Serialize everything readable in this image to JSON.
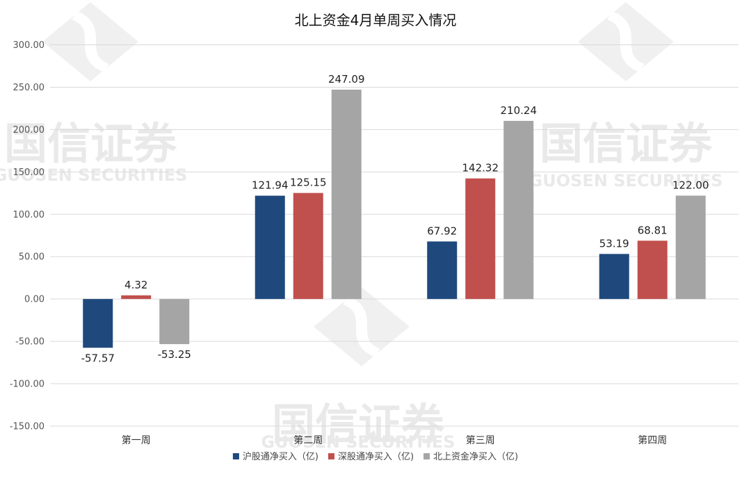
{
  "chart_data": {
    "type": "bar",
    "title": "北上资金4月单周买入情况",
    "xlabel": "",
    "ylabel": "",
    "categories": [
      "第一周",
      "第二周",
      "第三周",
      "第四周"
    ],
    "series": [
      {
        "name": "沪股通净买入（亿)",
        "color": "#1f497d",
        "values": [
          -57.57,
          121.94,
          67.92,
          53.19
        ]
      },
      {
        "name": "深股通净买入（亿)",
        "color": "#c0504d",
        "values": [
          4.32,
          125.15,
          142.32,
          68.81
        ]
      },
      {
        "name": "北上资金净买入（亿)",
        "color": "#a5a5a5",
        "values": [
          -53.25,
          247.09,
          210.24,
          122.0
        ]
      }
    ],
    "ylim": [
      -150,
      300
    ],
    "yticks": [
      -150,
      -100,
      -50,
      0,
      50,
      100,
      150,
      200,
      250,
      300
    ],
    "tick_format": "2 decimals",
    "grid": true,
    "legend": "bottom"
  },
  "watermark": {
    "brand_cn": "国信证券",
    "brand_en": "GUOSEN SECURITIES"
  }
}
